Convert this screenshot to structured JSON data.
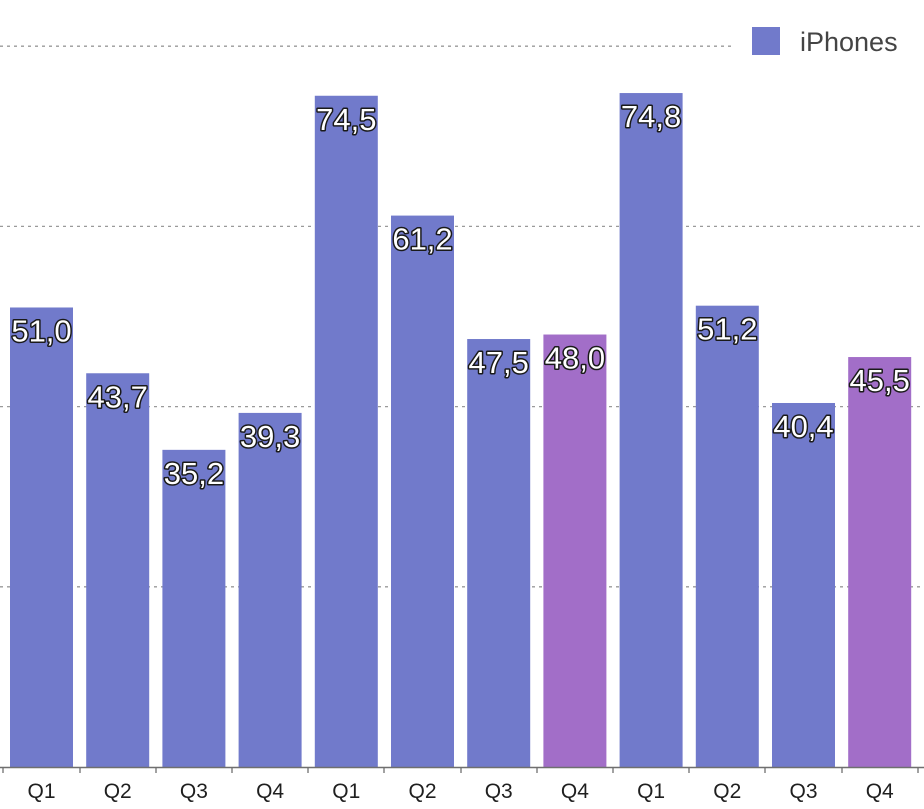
{
  "chart_data": {
    "type": "bar",
    "categories": [
      "Q1",
      "Q2",
      "Q3",
      "Q4",
      "Q1",
      "Q2",
      "Q3",
      "Q4",
      "Q1",
      "Q2",
      "Q3",
      "Q4"
    ],
    "series": [
      {
        "name": "iPhones",
        "values": [
          51.0,
          43.7,
          35.2,
          39.3,
          74.5,
          61.2,
          47.5,
          48.0,
          74.8,
          51.2,
          40.4,
          45.5
        ]
      }
    ],
    "value_labels": [
      "51,0",
      "43,7",
      "35,2",
      "39,3",
      "74,5",
      "61,2",
      "47,5",
      "48,0",
      "74,8",
      "51,2",
      "40,4",
      "45,5"
    ],
    "highlighted_categories": [
      7,
      11
    ],
    "ylim": [
      0,
      80
    ],
    "gridlines": [
      20,
      40,
      60,
      80
    ],
    "grid": "dotted horizontal",
    "legend_position": "top-right",
    "colors": {
      "bar": "#717acb",
      "highlight": "#a26ec8",
      "legend_swatch": "#717acb",
      "grid": "#9a9a9a",
      "axis": "#6f6f6f"
    }
  }
}
